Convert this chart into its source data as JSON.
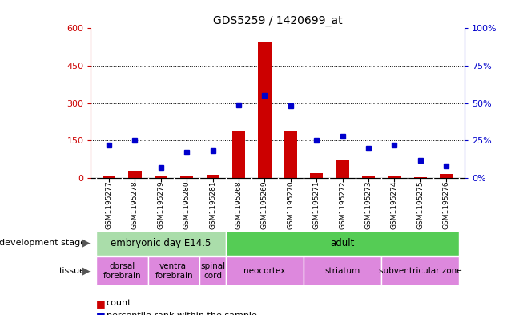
{
  "title": "GDS5259 / 1420699_at",
  "samples": [
    "GSM1195277",
    "GSM1195278",
    "GSM1195279",
    "GSM1195280",
    "GSM1195281",
    "GSM1195268",
    "GSM1195269",
    "GSM1195270",
    "GSM1195271",
    "GSM1195272",
    "GSM1195273",
    "GSM1195274",
    "GSM1195275",
    "GSM1195276"
  ],
  "counts": [
    10,
    28,
    5,
    5,
    12,
    185,
    545,
    185,
    18,
    72,
    8,
    8,
    3,
    16
  ],
  "percentiles": [
    22,
    25,
    7,
    17,
    18,
    49,
    55,
    48,
    25,
    28,
    20,
    22,
    12,
    8
  ],
  "ylim_left": [
    0,
    600
  ],
  "ylim_right": [
    0,
    100
  ],
  "yticks_left": [
    0,
    150,
    300,
    450,
    600
  ],
  "yticks_right": [
    0,
    25,
    50,
    75,
    100
  ],
  "bar_color": "#cc0000",
  "dot_color": "#0000cc",
  "bar_width": 0.5,
  "left_axis_color": "#cc0000",
  "right_axis_color": "#0000cc",
  "xticklabel_bg": "#cccccc",
  "development_stages": [
    {
      "label": "embryonic day E14.5",
      "start": 0,
      "end": 4,
      "color": "#aaddaa"
    },
    {
      "label": "adult",
      "start": 5,
      "end": 13,
      "color": "#55cc55"
    }
  ],
  "tissues": [
    {
      "label": "dorsal\nforebrain",
      "start": 0,
      "end": 1,
      "color": "#dd88dd"
    },
    {
      "label": "ventral\nforebrain",
      "start": 2,
      "end": 3,
      "color": "#dd88dd"
    },
    {
      "label": "spinal\ncord",
      "start": 4,
      "end": 4,
      "color": "#dd88dd"
    },
    {
      "label": "neocortex",
      "start": 5,
      "end": 7,
      "color": "#dd88dd"
    },
    {
      "label": "striatum",
      "start": 8,
      "end": 10,
      "color": "#dd88dd"
    },
    {
      "label": "subventricular zone",
      "start": 11,
      "end": 13,
      "color": "#dd88dd"
    }
  ],
  "legend_count_color": "#cc0000",
  "legend_pct_color": "#0000cc"
}
